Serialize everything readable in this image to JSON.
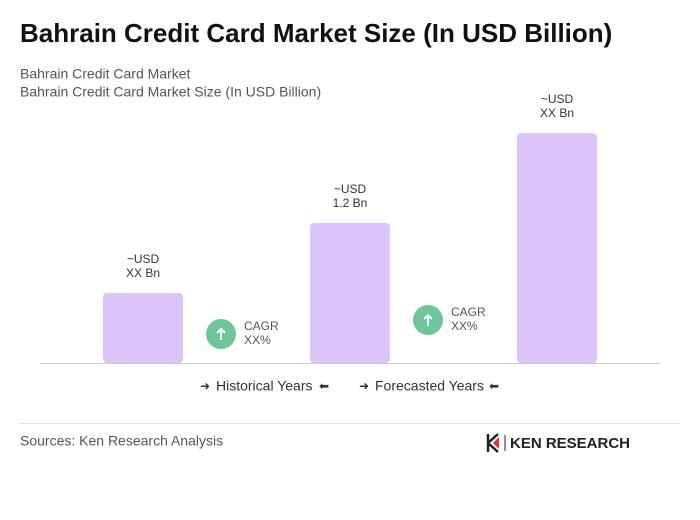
{
  "chart_data": {
    "type": "bar",
    "title": "Bahrain Credit Card Market Size (In USD Billion)",
    "subtitle": [
      "Bahrain Credit Card Market",
      "Bahrain Credit Card Market Size (In USD Billion)"
    ],
    "values": [
      0.6,
      1.2,
      1.97
    ],
    "value_labels": [
      "~USD\nXX Bn",
      "~USD\n1.2 Bn",
      "~USD\nXX Bn"
    ],
    "color": "#dcc3f8",
    "ylim": [
      0,
      2.4
    ],
    "annotations": [
      "CAGR\nXX%",
      "CAGR\nXX%"
    ],
    "annotation_color": "#6cc69a",
    "period_labels": [
      "Historical Years",
      "Forecasted Years"
    ],
    "source": "Sources: Ken Research Analysis",
    "logo": "KEN RESEARCH"
  }
}
